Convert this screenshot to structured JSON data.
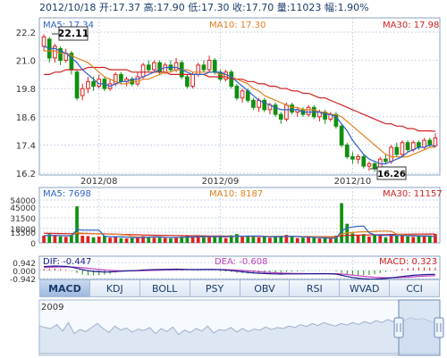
{
  "info_bar": {
    "date": "2012/10/18",
    "open": "开:17.37",
    "high": "高:17.90",
    "low": "低:17.30",
    "close": "收:17.70",
    "volume": "量:11023",
    "change": "幅:1.90%"
  },
  "price_panel": {
    "ma5_label": "MA5: 17.34",
    "ma10_label": "MA10: 17.30",
    "ma30_label": "MA30: 17.98",
    "y_ticks": [
      "22.2",
      "21.0",
      "19.8",
      "18.6",
      "17.4",
      "16.2"
    ],
    "high_callout": "22.11",
    "low_callout": "16.26",
    "x_ticks": [
      "2012/08",
      "2012/09",
      "2012/10"
    ]
  },
  "volume_panel": {
    "ma5_label": "MA5: 7698",
    "ma10_label": "MA10: 8187",
    "ma30_label": "MA30: 11157",
    "y_ticks": [
      "54000",
      "45000",
      "31500",
      "18000",
      "13500",
      "0"
    ]
  },
  "macd_panel": {
    "dif_label": "DIF: -0.447",
    "dea_label": "DEA: -0.608",
    "macd_label": "MACD: 0.323",
    "y_ticks": [
      "0.942",
      "0.000",
      "-0.942"
    ]
  },
  "tabs": [
    "MACD",
    "KDJ",
    "BOLL",
    "PSY",
    "OBV",
    "RSI",
    "WVAD",
    "CCI"
  ],
  "active_tab": "MACD",
  "navigator": {
    "year_label": "2009"
  },
  "colors": {
    "up": "#e02020",
    "down": "#109010",
    "ma5": "#3060c8",
    "ma10": "#e08020",
    "ma30": "#d02020",
    "dif": "#1a1a8a",
    "dea": "#c040c0",
    "frame": "#8aa0c0",
    "grid": "#c8d4e6",
    "navigator_fill": "#dde7f4"
  },
  "chart_data": {
    "type": "candlestick",
    "price_ylim": [
      16.2,
      22.2
    ],
    "volume_ylim": [
      0,
      54000
    ],
    "macd_ylim": [
      -0.942,
      0.942
    ],
    "candles": [
      {
        "o": 21.6,
        "c": 22.0,
        "h": 22.11,
        "l": 21.4,
        "v": 9000
      },
      {
        "o": 21.9,
        "c": 21.1,
        "h": 22.0,
        "l": 20.9,
        "v": 11000
      },
      {
        "o": 21.1,
        "c": 21.6,
        "h": 21.7,
        "l": 20.9,
        "v": 9500
      },
      {
        "o": 21.5,
        "c": 21.0,
        "h": 21.6,
        "l": 20.8,
        "v": 8000
      },
      {
        "o": 21.0,
        "c": 21.3,
        "h": 21.5,
        "l": 20.9,
        "v": 7500
      },
      {
        "o": 21.3,
        "c": 20.6,
        "h": 21.4,
        "l": 20.4,
        "v": 10000
      },
      {
        "o": 20.5,
        "c": 19.4,
        "h": 20.6,
        "l": 19.3,
        "v": 46000
      },
      {
        "o": 19.5,
        "c": 19.8,
        "h": 20.0,
        "l": 19.3,
        "v": 9000
      },
      {
        "o": 19.8,
        "c": 20.1,
        "h": 20.3,
        "l": 19.6,
        "v": 8500
      },
      {
        "o": 20.1,
        "c": 19.9,
        "h": 20.3,
        "l": 19.7,
        "v": 7000
      },
      {
        "o": 19.9,
        "c": 20.2,
        "h": 20.4,
        "l": 19.8,
        "v": 8000
      },
      {
        "o": 20.2,
        "c": 19.8,
        "h": 20.3,
        "l": 19.7,
        "v": 9000
      },
      {
        "o": 19.8,
        "c": 20.0,
        "h": 20.2,
        "l": 19.7,
        "v": 6500
      },
      {
        "o": 20.0,
        "c": 20.4,
        "h": 20.5,
        "l": 19.9,
        "v": 7500
      },
      {
        "o": 20.4,
        "c": 20.1,
        "h": 20.5,
        "l": 20.0,
        "v": 6000
      },
      {
        "o": 20.1,
        "c": 20.2,
        "h": 20.3,
        "l": 19.9,
        "v": 5500
      },
      {
        "o": 20.2,
        "c": 20.0,
        "h": 20.3,
        "l": 19.9,
        "v": 6000
      },
      {
        "o": 20.0,
        "c": 20.3,
        "h": 20.5,
        "l": 19.9,
        "v": 7000
      },
      {
        "o": 20.3,
        "c": 20.8,
        "h": 20.9,
        "l": 20.2,
        "v": 8500
      },
      {
        "o": 20.8,
        "c": 20.6,
        "h": 21.0,
        "l": 20.5,
        "v": 7000
      },
      {
        "o": 20.6,
        "c": 20.9,
        "h": 21.0,
        "l": 20.5,
        "v": 6500
      },
      {
        "o": 20.9,
        "c": 20.5,
        "h": 21.0,
        "l": 20.4,
        "v": 7000
      },
      {
        "o": 20.5,
        "c": 20.8,
        "h": 20.9,
        "l": 20.4,
        "v": 6000
      },
      {
        "o": 20.8,
        "c": 20.6,
        "h": 21.0,
        "l": 20.5,
        "v": 5500
      },
      {
        "o": 20.6,
        "c": 20.9,
        "h": 21.1,
        "l": 20.5,
        "v": 6500
      },
      {
        "o": 20.9,
        "c": 20.3,
        "h": 21.0,
        "l": 20.2,
        "v": 8000
      },
      {
        "o": 20.3,
        "c": 19.9,
        "h": 20.4,
        "l": 19.8,
        "v": 9000
      },
      {
        "o": 19.9,
        "c": 20.4,
        "h": 20.5,
        "l": 19.8,
        "v": 7000
      },
      {
        "o": 20.4,
        "c": 20.8,
        "h": 20.9,
        "l": 20.3,
        "v": 8500
      },
      {
        "o": 20.8,
        "c": 20.6,
        "h": 21.0,
        "l": 20.5,
        "v": 7500
      },
      {
        "o": 20.6,
        "c": 21.0,
        "h": 21.2,
        "l": 20.5,
        "v": 9000
      },
      {
        "o": 21.0,
        "c": 20.5,
        "h": 21.1,
        "l": 20.4,
        "v": 8000
      },
      {
        "o": 20.5,
        "c": 20.2,
        "h": 20.6,
        "l": 20.1,
        "v": 7500
      },
      {
        "o": 20.2,
        "c": 20.5,
        "h": 20.6,
        "l": 20.1,
        "v": 6000
      },
      {
        "o": 20.5,
        "c": 19.9,
        "h": 20.6,
        "l": 19.8,
        "v": 9500
      },
      {
        "o": 19.9,
        "c": 19.4,
        "h": 20.0,
        "l": 19.3,
        "v": 11000
      },
      {
        "o": 19.4,
        "c": 19.7,
        "h": 19.8,
        "l": 19.2,
        "v": 7500
      },
      {
        "o": 19.7,
        "c": 19.3,
        "h": 19.8,
        "l": 19.2,
        "v": 8500
      },
      {
        "o": 19.3,
        "c": 19.0,
        "h": 19.4,
        "l": 18.9,
        "v": 9000
      },
      {
        "o": 19.0,
        "c": 19.3,
        "h": 19.4,
        "l": 18.8,
        "v": 7000
      },
      {
        "o": 19.3,
        "c": 18.9,
        "h": 19.4,
        "l": 18.8,
        "v": 8000
      },
      {
        "o": 18.9,
        "c": 19.1,
        "h": 19.2,
        "l": 18.7,
        "v": 6500
      },
      {
        "o": 19.1,
        "c": 18.7,
        "h": 19.2,
        "l": 18.6,
        "v": 8500
      },
      {
        "o": 18.7,
        "c": 18.5,
        "h": 18.8,
        "l": 18.3,
        "v": 9000
      },
      {
        "o": 18.5,
        "c": 19.1,
        "h": 19.2,
        "l": 18.4,
        "v": 10000
      },
      {
        "o": 19.1,
        "c": 18.8,
        "h": 19.2,
        "l": 18.7,
        "v": 7500
      },
      {
        "o": 18.8,
        "c": 18.9,
        "h": 19.0,
        "l": 18.6,
        "v": 6000
      },
      {
        "o": 18.9,
        "c": 18.7,
        "h": 19.0,
        "l": 18.6,
        "v": 6500
      },
      {
        "o": 18.7,
        "c": 19.0,
        "h": 19.1,
        "l": 18.6,
        "v": 7000
      },
      {
        "o": 19.0,
        "c": 18.6,
        "h": 19.1,
        "l": 18.5,
        "v": 8000
      },
      {
        "o": 18.6,
        "c": 18.8,
        "h": 18.9,
        "l": 18.4,
        "v": 5500
      },
      {
        "o": 18.8,
        "c": 18.5,
        "h": 18.9,
        "l": 18.3,
        "v": 6000
      },
      {
        "o": 18.5,
        "c": 18.7,
        "h": 18.8,
        "l": 18.4,
        "v": 5000
      },
      {
        "o": 18.7,
        "c": 18.2,
        "h": 18.8,
        "l": 18.1,
        "v": 9000
      },
      {
        "o": 18.2,
        "c": 17.4,
        "h": 18.3,
        "l": 17.3,
        "v": 50000
      },
      {
        "o": 17.4,
        "c": 16.9,
        "h": 17.5,
        "l": 16.8,
        "v": 24000
      },
      {
        "o": 16.9,
        "c": 16.8,
        "h": 17.1,
        "l": 16.6,
        "v": 12000
      },
      {
        "o": 16.8,
        "c": 16.9,
        "h": 17.0,
        "l": 16.6,
        "v": 9000
      },
      {
        "o": 16.9,
        "c": 16.5,
        "h": 17.0,
        "l": 16.4,
        "v": 11000
      },
      {
        "o": 16.5,
        "c": 16.6,
        "h": 16.7,
        "l": 16.3,
        "v": 8000
      },
      {
        "o": 16.6,
        "c": 16.4,
        "h": 16.7,
        "l": 16.26,
        "v": 10000
      },
      {
        "o": 16.4,
        "c": 16.8,
        "h": 16.9,
        "l": 16.3,
        "v": 9000
      },
      {
        "o": 16.8,
        "c": 16.7,
        "h": 17.0,
        "l": 16.6,
        "v": 7000
      },
      {
        "o": 16.7,
        "c": 17.3,
        "h": 17.4,
        "l": 16.6,
        "v": 11000
      },
      {
        "o": 17.3,
        "c": 17.0,
        "h": 17.5,
        "l": 16.9,
        "v": 8500
      },
      {
        "o": 17.0,
        "c": 17.5,
        "h": 17.6,
        "l": 16.9,
        "v": 10000
      },
      {
        "o": 17.5,
        "c": 17.2,
        "h": 17.6,
        "l": 17.1,
        "v": 8000
      },
      {
        "o": 17.2,
        "c": 17.5,
        "h": 17.6,
        "l": 17.1,
        "v": 7500
      },
      {
        "o": 17.5,
        "c": 17.3,
        "h": 17.6,
        "l": 17.2,
        "v": 9000
      },
      {
        "o": 17.3,
        "c": 17.6,
        "h": 17.7,
        "l": 17.2,
        "v": 8000
      },
      {
        "o": 17.6,
        "c": 17.4,
        "h": 17.7,
        "l": 17.3,
        "v": 9500
      },
      {
        "o": 17.37,
        "c": 17.7,
        "h": 17.9,
        "l": 17.3,
        "v": 11023
      }
    ],
    "ma5": [
      21.6,
      21.5,
      21.5,
      21.4,
      21.3,
      21.1,
      20.9,
      20.6,
      20.4,
      20.2,
      20.0,
      20.0,
      19.9,
      20.0,
      20.1,
      20.1,
      20.2,
      20.2,
      20.3,
      20.4,
      20.5,
      20.6,
      20.7,
      20.7,
      20.7,
      20.6,
      20.5,
      20.4,
      20.4,
      20.4,
      20.5,
      20.5,
      20.5,
      20.4,
      20.3,
      20.1,
      19.9,
      19.7,
      19.5,
      19.3,
      19.2,
      19.1,
      19.0,
      18.9,
      18.9,
      18.9,
      18.9,
      18.8,
      18.8,
      18.8,
      18.8,
      18.7,
      18.7,
      18.6,
      18.3,
      18.0,
      17.6,
      17.3,
      17.0,
      16.8,
      16.7,
      16.6,
      16.6,
      16.7,
      16.8,
      16.9,
      17.1,
      17.2,
      17.3,
      17.3,
      17.4,
      17.34
    ],
    "ma10": [
      21.4,
      21.4,
      21.4,
      21.3,
      21.3,
      21.2,
      21.1,
      21.0,
      20.9,
      20.7,
      20.5,
      20.3,
      20.2,
      20.1,
      20.0,
      20.0,
      20.1,
      20.1,
      20.2,
      20.2,
      20.3,
      20.4,
      20.5,
      20.5,
      20.6,
      20.6,
      20.6,
      20.5,
      20.5,
      20.5,
      20.5,
      20.5,
      20.4,
      20.4,
      20.3,
      20.2,
      20.1,
      20.0,
      19.8,
      19.7,
      19.5,
      19.4,
      19.3,
      19.2,
      19.1,
      19.0,
      19.0,
      18.9,
      18.9,
      18.9,
      18.8,
      18.8,
      18.7,
      18.7,
      18.6,
      18.4,
      18.2,
      18.0,
      17.8,
      17.6,
      17.4,
      17.2,
      17.0,
      16.9,
      16.9,
      16.9,
      16.9,
      17.0,
      17.1,
      17.2,
      17.3,
      17.3
    ],
    "ma30": [
      20.4,
      20.4,
      20.5,
      20.5,
      20.6,
      20.6,
      20.6,
      20.6,
      20.7,
      20.7,
      20.7,
      20.7,
      20.6,
      20.6,
      20.6,
      20.6,
      20.5,
      20.5,
      20.5,
      20.5,
      20.5,
      20.5,
      20.5,
      20.4,
      20.4,
      20.4,
      20.4,
      20.4,
      20.4,
      20.4,
      20.3,
      20.3,
      20.3,
      20.3,
      20.2,
      20.2,
      20.2,
      20.1,
      20.1,
      20.0,
      20.0,
      19.9,
      19.9,
      19.8,
      19.8,
      19.7,
      19.7,
      19.6,
      19.6,
      19.5,
      19.4,
      19.4,
      19.3,
      19.2,
      19.1,
      19.0,
      18.9,
      18.8,
      18.7,
      18.6,
      18.5,
      18.4,
      18.3,
      18.3,
      18.2,
      18.2,
      18.1,
      18.1,
      18.0,
      18.0,
      18.0,
      17.98
    ],
    "vol_ma5": [
      9000,
      9500,
      9500,
      9000,
      9000,
      9000,
      16500,
      16000,
      16000,
      16000,
      16000,
      8300,
      7800,
      7800,
      7800,
      7200,
      6600,
      6400,
      6900,
      7200,
      7500,
      7400,
      7000,
      6800,
      6800,
      7000,
      7400,
      7300,
      7800,
      8000,
      8000,
      8000,
      7900,
      7800,
      8000,
      8400,
      8300,
      8500,
      8700,
      8600,
      8000,
      7700,
      7800,
      7800,
      8300,
      8300,
      8000,
      7500,
      7200,
      7000,
      6600,
      6200,
      5700,
      6000,
      15000,
      18800,
      20000,
      20800,
      21200,
      12800,
      10000,
      9600,
      9200,
      9600,
      9100,
      9300,
      8800,
      9000,
      8600,
      8500,
      8700,
      7698
    ],
    "vol_ma10": [
      9000,
      9200,
      9200,
      9100,
      9000,
      9000,
      12500,
      12200,
      12000,
      11500,
      11500,
      11500,
      11000,
      10800,
      10500,
      9900,
      8200,
      7500,
      7300,
      7300,
      7300,
      7200,
      7000,
      6800,
      6800,
      6900,
      7200,
      7300,
      7400,
      7500,
      7500,
      7600,
      7700,
      7700,
      7800,
      8000,
      8100,
      8200,
      8300,
      8400,
      8300,
      8200,
      8100,
      8100,
      8200,
      8200,
      8000,
      7800,
      7700,
      7600,
      7400,
      7200,
      6900,
      6800,
      11000,
      12500,
      13000,
      13600,
      14000,
      14000,
      14500,
      14800,
      14900,
      14500,
      11000,
      10700,
      9600,
      9400,
      9100,
      9000,
      8800,
      8187
    ],
    "vol_ma30": [
      12000,
      11900,
      11800,
      11700,
      11600,
      11500,
      11800,
      11700,
      11600,
      11500,
      11400,
      11300,
      11100,
      10900,
      10700,
      10500,
      10300,
      10100,
      9900,
      9700,
      9600,
      9500,
      9400,
      9300,
      9200,
      9100,
      9000,
      8900,
      8900,
      8800,
      8700,
      8600,
      8500,
      8400,
      8300,
      8300,
      8200,
      8200,
      8100,
      8100,
      8000,
      8000,
      8000,
      8000,
      8000,
      8000,
      8000,
      7900,
      7900,
      7800,
      7800,
      7800,
      7700,
      7700,
      8800,
      9400,
      9600,
      9700,
      9900,
      10000,
      10100,
      10200,
      10400,
      10600,
      10700,
      10800,
      10900,
      11000,
      11000,
      11100,
      11100,
      11157
    ],
    "dif": [
      0.45,
      0.5,
      0.52,
      0.5,
      0.48,
      0.4,
      0.25,
      0.1,
      -0.02,
      -0.1,
      -0.15,
      -0.18,
      -0.17,
      -0.13,
      -0.08,
      -0.05,
      -0.02,
      0.0,
      0.05,
      0.08,
      0.1,
      0.12,
      0.14,
      0.15,
      0.16,
      0.15,
      0.12,
      0.1,
      0.1,
      0.11,
      0.12,
      0.11,
      0.08,
      0.05,
      0.0,
      -0.08,
      -0.15,
      -0.22,
      -0.28,
      -0.32,
      -0.36,
      -0.38,
      -0.4,
      -0.42,
      -0.4,
      -0.4,
      -0.4,
      -0.4,
      -0.38,
      -0.38,
      -0.38,
      -0.38,
      -0.38,
      -0.42,
      -0.55,
      -0.7,
      -0.82,
      -0.9,
      -0.96,
      -1.0,
      -1.02,
      -0.98,
      -0.93,
      -0.85,
      -0.78,
      -0.7,
      -0.63,
      -0.57,
      -0.52,
      -0.48,
      -0.46,
      -0.447
    ],
    "dea": [
      0.35,
      0.38,
      0.4,
      0.42,
      0.43,
      0.42,
      0.39,
      0.33,
      0.26,
      0.19,
      0.12,
      0.06,
      0.02,
      -0.01,
      -0.03,
      -0.04,
      -0.04,
      -0.03,
      -0.02,
      0.0,
      0.02,
      0.04,
      0.06,
      0.08,
      0.09,
      0.1,
      0.11,
      0.11,
      0.11,
      0.11,
      0.11,
      0.11,
      0.11,
      0.1,
      0.08,
      0.05,
      0.01,
      -0.04,
      -0.09,
      -0.14,
      -0.19,
      -0.23,
      -0.27,
      -0.3,
      -0.32,
      -0.34,
      -0.35,
      -0.36,
      -0.37,
      -0.37,
      -0.37,
      -0.37,
      -0.38,
      -0.38,
      -0.41,
      -0.47,
      -0.54,
      -0.61,
      -0.68,
      -0.74,
      -0.8,
      -0.83,
      -0.85,
      -0.85,
      -0.84,
      -0.81,
      -0.78,
      -0.74,
      -0.7,
      -0.66,
      -0.63,
      -0.608
    ]
  }
}
